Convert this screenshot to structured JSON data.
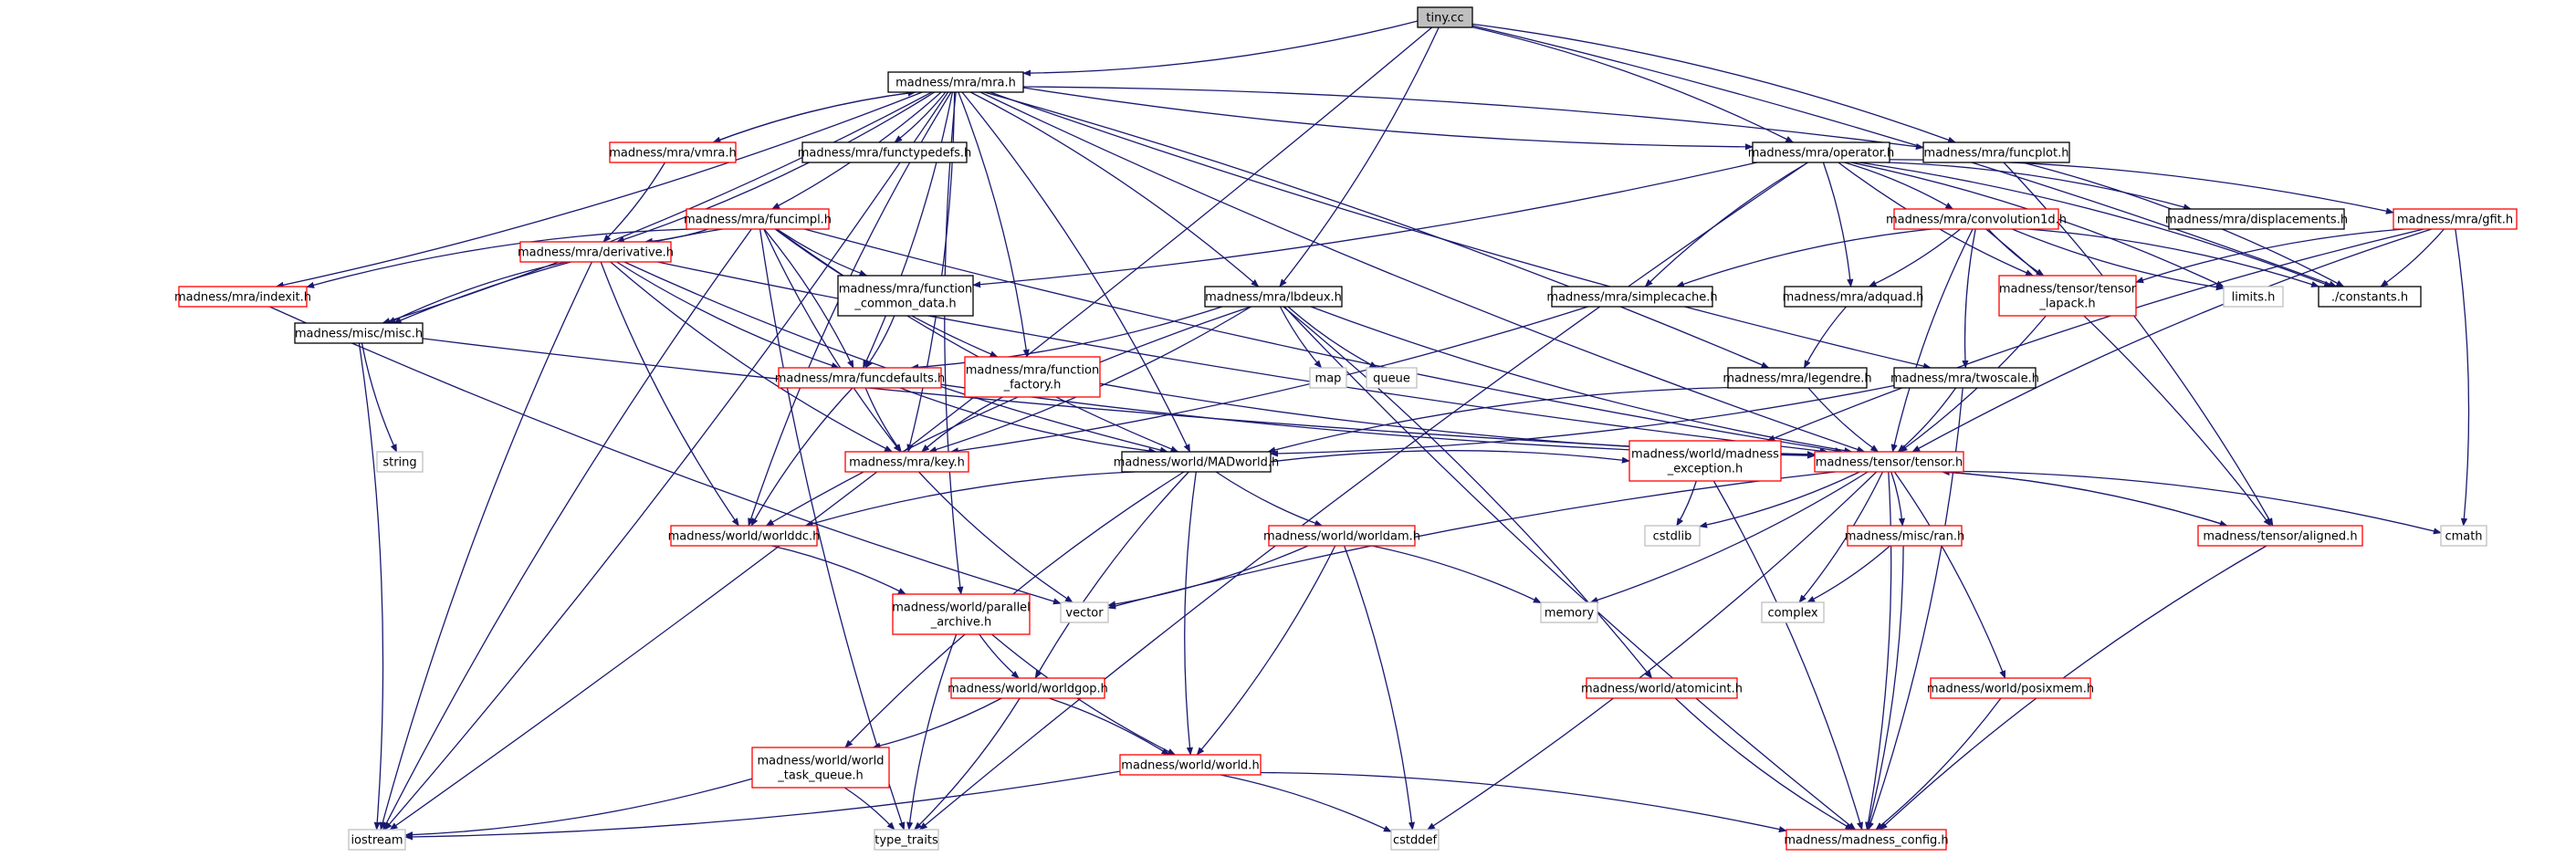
{
  "colors": {
    "root_fill": "#bfbfbf",
    "root_border": "#000000",
    "documented_border": "#000000",
    "incomplete_border": "#ff0000",
    "external_border": "#bfbfbf",
    "edge": "#191970",
    "background": "#ffffff"
  },
  "nodes": [
    {
      "id": "tiny",
      "lines": [
        "tiny.cc"
      ],
      "kind": "root"
    },
    {
      "id": "mra_h",
      "lines": [
        "madness/mra/mra.h"
      ],
      "kind": "documented"
    },
    {
      "id": "vmra",
      "lines": [
        "madness/mra/vmra.h"
      ],
      "kind": "incomplete"
    },
    {
      "id": "functypedefs",
      "lines": [
        "madness/mra/functypedefs.h"
      ],
      "kind": "documented"
    },
    {
      "id": "operator",
      "lines": [
        "madness/mra/operator.h"
      ],
      "kind": "documented"
    },
    {
      "id": "funcplot",
      "lines": [
        "madness/mra/funcplot.h"
      ],
      "kind": "documented"
    },
    {
      "id": "funcimpl",
      "lines": [
        "madness/mra/funcimpl.h"
      ],
      "kind": "incomplete"
    },
    {
      "id": "convolution1d",
      "lines": [
        "madness/mra/convolution1d.h"
      ],
      "kind": "incomplete"
    },
    {
      "id": "displacements",
      "lines": [
        "madness/mra/displacements.h"
      ],
      "kind": "documented"
    },
    {
      "id": "gfit",
      "lines": [
        "madness/mra/gfit.h"
      ],
      "kind": "incomplete"
    },
    {
      "id": "indexit",
      "lines": [
        "madness/mra/indexit.h"
      ],
      "kind": "incomplete"
    },
    {
      "id": "derivative",
      "lines": [
        "madness/mra/derivative.h"
      ],
      "kind": "incomplete"
    },
    {
      "id": "function_common_data",
      "lines": [
        "madness/mra/function",
        "_common_data.h"
      ],
      "kind": "documented"
    },
    {
      "id": "lbdeux",
      "lines": [
        "madness/mra/lbdeux.h"
      ],
      "kind": "documented"
    },
    {
      "id": "simplecache",
      "lines": [
        "madness/mra/simplecache.h"
      ],
      "kind": "documented"
    },
    {
      "id": "adquad",
      "lines": [
        "madness/mra/adquad.h"
      ],
      "kind": "documented"
    },
    {
      "id": "tensor_lapack",
      "lines": [
        "madness/tensor/tensor",
        "_lapack.h"
      ],
      "kind": "incomplete"
    },
    {
      "id": "limits",
      "lines": [
        "limits.h"
      ],
      "kind": "external"
    },
    {
      "id": "constants",
      "lines": [
        "./constants.h"
      ],
      "kind": "documented"
    },
    {
      "id": "misc",
      "lines": [
        "madness/misc/misc.h"
      ],
      "kind": "documented"
    },
    {
      "id": "funcdefaults",
      "lines": [
        "madness/mra/funcdefaults.h"
      ],
      "kind": "incomplete"
    },
    {
      "id": "function_factory",
      "lines": [
        "madness/mra/function",
        "_factory.h"
      ],
      "kind": "incomplete"
    },
    {
      "id": "map",
      "lines": [
        "map"
      ],
      "kind": "external"
    },
    {
      "id": "queue",
      "lines": [
        "queue"
      ],
      "kind": "external"
    },
    {
      "id": "legendre",
      "lines": [
        "madness/mra/legendre.h"
      ],
      "kind": "documented"
    },
    {
      "id": "twoscale",
      "lines": [
        "madness/mra/twoscale.h"
      ],
      "kind": "documented"
    },
    {
      "id": "string",
      "lines": [
        "string"
      ],
      "kind": "external"
    },
    {
      "id": "key",
      "lines": [
        "madness/mra/key.h"
      ],
      "kind": "incomplete"
    },
    {
      "id": "madworld",
      "lines": [
        "madness/world/MADworld.h"
      ],
      "kind": "documented"
    },
    {
      "id": "madness_exception",
      "lines": [
        "madness/world/madness",
        "_exception.h"
      ],
      "kind": "incomplete"
    },
    {
      "id": "tensor",
      "lines": [
        "madness/tensor/tensor.h"
      ],
      "kind": "incomplete"
    },
    {
      "id": "worlddc",
      "lines": [
        "madness/world/worlddc.h"
      ],
      "kind": "incomplete"
    },
    {
      "id": "worldam",
      "lines": [
        "madness/world/worldam.h"
      ],
      "kind": "incomplete"
    },
    {
      "id": "cstdlib",
      "lines": [
        "cstdlib"
      ],
      "kind": "external"
    },
    {
      "id": "ran",
      "lines": [
        "madness/misc/ran.h"
      ],
      "kind": "incomplete"
    },
    {
      "id": "aligned",
      "lines": [
        "madness/tensor/aligned.h"
      ],
      "kind": "incomplete"
    },
    {
      "id": "cmath",
      "lines": [
        "cmath"
      ],
      "kind": "external"
    },
    {
      "id": "parallel_archive",
      "lines": [
        "madness/world/parallel",
        "_archive.h"
      ],
      "kind": "incomplete"
    },
    {
      "id": "vector",
      "lines": [
        "vector"
      ],
      "kind": "external"
    },
    {
      "id": "memory",
      "lines": [
        "memory"
      ],
      "kind": "external"
    },
    {
      "id": "complex",
      "lines": [
        "complex"
      ],
      "kind": "external"
    },
    {
      "id": "worldgop",
      "lines": [
        "madness/world/worldgop.h"
      ],
      "kind": "incomplete"
    },
    {
      "id": "atomicint",
      "lines": [
        "madness/world/atomicint.h"
      ],
      "kind": "incomplete"
    },
    {
      "id": "posixmem",
      "lines": [
        "madness/world/posixmem.h"
      ],
      "kind": "incomplete"
    },
    {
      "id": "world_task_queue",
      "lines": [
        "madness/world/world",
        "_task_queue.h"
      ],
      "kind": "incomplete"
    },
    {
      "id": "world",
      "lines": [
        "madness/world/world.h"
      ],
      "kind": "incomplete"
    },
    {
      "id": "iostream",
      "lines": [
        "iostream"
      ],
      "kind": "external"
    },
    {
      "id": "type_traits",
      "lines": [
        "type_traits"
      ],
      "kind": "external"
    },
    {
      "id": "cstddef",
      "lines": [
        "cstddef"
      ],
      "kind": "external"
    },
    {
      "id": "madness_config",
      "lines": [
        "madness/madness_config.h"
      ],
      "kind": "incomplete"
    }
  ],
  "edges": [
    [
      "tiny",
      "mra_h"
    ],
    [
      "tiny",
      "iostream"
    ],
    [
      "tiny",
      "operator"
    ],
    [
      "tiny",
      "funcplot"
    ],
    [
      "tiny",
      "lbdeux"
    ],
    [
      "tiny",
      "constants"
    ],
    [
      "mra_h",
      "vmra"
    ],
    [
      "mra_h",
      "functypedefs"
    ],
    [
      "mra_h",
      "operator"
    ],
    [
      "mra_h",
      "funcplot"
    ],
    [
      "mra_h",
      "funcimpl"
    ],
    [
      "mra_h",
      "indexit"
    ],
    [
      "mra_h",
      "derivative"
    ],
    [
      "mra_h",
      "lbdeux"
    ],
    [
      "mra_h",
      "misc"
    ],
    [
      "mra_h",
      "funcdefaults"
    ],
    [
      "mra_h",
      "function_factory"
    ],
    [
      "mra_h",
      "key"
    ],
    [
      "mra_h",
      "madworld"
    ],
    [
      "mra_h",
      "worlddc"
    ],
    [
      "mra_h",
      "tensor"
    ],
    [
      "mra_h",
      "legendre"
    ],
    [
      "mra_h",
      "twoscale"
    ],
    [
      "mra_h",
      "parallel_archive"
    ],
    [
      "mra_h",
      "iostream"
    ],
    [
      "vmra",
      "mra_h"
    ],
    [
      "vmra",
      "derivative"
    ],
    [
      "operator",
      "displacements"
    ],
    [
      "operator",
      "convolution1d"
    ],
    [
      "operator",
      "gfit"
    ],
    [
      "operator",
      "simplecache"
    ],
    [
      "operator",
      "adquad"
    ],
    [
      "operator",
      "tensor_lapack"
    ],
    [
      "operator",
      "limits"
    ],
    [
      "operator",
      "constants"
    ],
    [
      "operator",
      "function_common_data"
    ],
    [
      "operator",
      "type_traits"
    ],
    [
      "funcplot",
      "constants"
    ],
    [
      "funcplot",
      "aligned"
    ],
    [
      "funcimpl",
      "indexit"
    ],
    [
      "funcimpl",
      "derivative"
    ],
    [
      "funcimpl",
      "function_common_data"
    ],
    [
      "funcimpl",
      "funcdefaults"
    ],
    [
      "funcimpl",
      "function_factory"
    ],
    [
      "funcimpl",
      "misc"
    ],
    [
      "funcimpl",
      "key"
    ],
    [
      "funcimpl",
      "madworld"
    ],
    [
      "funcimpl",
      "tensor"
    ],
    [
      "funcimpl",
      "iostream"
    ],
    [
      "funcimpl",
      "type_traits"
    ],
    [
      "convolution1d",
      "simplecache"
    ],
    [
      "convolution1d",
      "adquad"
    ],
    [
      "convolution1d",
      "tensor_lapack"
    ],
    [
      "convolution1d",
      "twoscale"
    ],
    [
      "convolution1d",
      "limits"
    ],
    [
      "convolution1d",
      "constants"
    ],
    [
      "convolution1d",
      "aligned"
    ],
    [
      "convolution1d",
      "tensor"
    ],
    [
      "gfit",
      "tensor_lapack"
    ],
    [
      "gfit",
      "constants"
    ],
    [
      "gfit",
      "cmath"
    ],
    [
      "gfit",
      "tensor"
    ],
    [
      "gfit",
      "madness_exception"
    ],
    [
      "indexit",
      "vector"
    ],
    [
      "derivative",
      "misc"
    ],
    [
      "derivative",
      "funcdefaults"
    ],
    [
      "derivative",
      "key"
    ],
    [
      "derivative",
      "madworld"
    ],
    [
      "derivative",
      "worlddc"
    ],
    [
      "derivative",
      "tensor"
    ],
    [
      "derivative",
      "iostream"
    ],
    [
      "function_common_data",
      "funcdefaults"
    ],
    [
      "lbdeux",
      "funcdefaults"
    ],
    [
      "lbdeux",
      "map"
    ],
    [
      "lbdeux",
      "queue"
    ],
    [
      "lbdeux",
      "key"
    ],
    [
      "lbdeux",
      "worlddc"
    ],
    [
      "lbdeux",
      "tensor"
    ],
    [
      "lbdeux",
      "atomicint"
    ],
    [
      "lbdeux",
      "madness_config"
    ],
    [
      "simplecache",
      "key"
    ],
    [
      "adquad",
      "legendre"
    ],
    [
      "tensor_lapack",
      "tensor"
    ],
    [
      "misc",
      "string"
    ],
    [
      "misc",
      "iostream"
    ],
    [
      "misc",
      "tensor"
    ],
    [
      "funcdefaults",
      "key"
    ],
    [
      "funcdefaults",
      "madworld"
    ],
    [
      "funcdefaults",
      "worlddc"
    ],
    [
      "funcdefaults",
      "tensor"
    ],
    [
      "function_factory",
      "key"
    ],
    [
      "function_factory",
      "tensor"
    ],
    [
      "legendre",
      "madworld"
    ],
    [
      "legendre",
      "tensor"
    ],
    [
      "twoscale",
      "tensor"
    ],
    [
      "twoscale",
      "madworld"
    ],
    [
      "twoscale",
      "madness_config"
    ],
    [
      "key",
      "vector"
    ],
    [
      "madworld",
      "worlddc"
    ],
    [
      "madworld",
      "worldam"
    ],
    [
      "madworld",
      "worldgop"
    ],
    [
      "madworld",
      "world"
    ],
    [
      "madworld",
      "world_task_queue"
    ],
    [
      "madworld",
      "madness_exception"
    ],
    [
      "madness_exception",
      "cstdlib"
    ],
    [
      "madness_exception",
      "madness_config"
    ],
    [
      "tensor",
      "aligned"
    ],
    [
      "tensor",
      "cmath"
    ],
    [
      "tensor",
      "cstdlib"
    ],
    [
      "tensor",
      "ran"
    ],
    [
      "tensor",
      "vector"
    ],
    [
      "tensor",
      "memory"
    ],
    [
      "tensor",
      "complex"
    ],
    [
      "tensor",
      "posixmem"
    ],
    [
      "tensor",
      "cstddef"
    ],
    [
      "tensor",
      "madness_config"
    ],
    [
      "aligned",
      "tensor"
    ],
    [
      "aligned",
      "madness_config"
    ],
    [
      "worlddc",
      "parallel_archive"
    ],
    [
      "worldam",
      "vector"
    ],
    [
      "worldam",
      "memory"
    ],
    [
      "worldam",
      "world"
    ],
    [
      "worldam",
      "cstddef"
    ],
    [
      "ran",
      "complex"
    ],
    [
      "ran",
      "madness_config"
    ],
    [
      "parallel_archive",
      "worldgop"
    ],
    [
      "parallel_archive",
      "world"
    ],
    [
      "parallel_archive",
      "type_traits"
    ],
    [
      "worldgop",
      "world_task_queue"
    ],
    [
      "worldgop",
      "world"
    ],
    [
      "worldgop",
      "type_traits"
    ],
    [
      "atomicint",
      "madness_config"
    ],
    [
      "posixmem",
      "madness_config"
    ],
    [
      "world_task_queue",
      "iostream"
    ],
    [
      "world_task_queue",
      "type_traits"
    ],
    [
      "world",
      "iostream"
    ],
    [
      "world",
      "cstddef"
    ],
    [
      "world",
      "madness_config"
    ]
  ]
}
